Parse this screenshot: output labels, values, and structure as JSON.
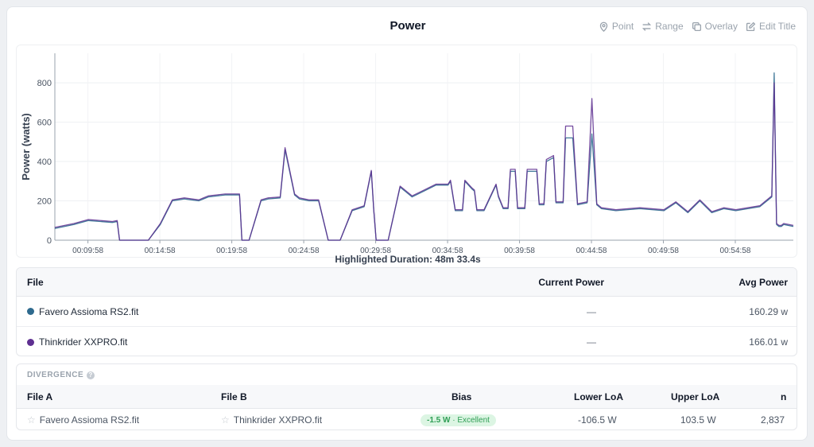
{
  "title": "Power",
  "toolbar": [
    {
      "label": "Point",
      "icon": "map-pin-icon"
    },
    {
      "label": "Range",
      "icon": "arrows-horizontal-icon"
    },
    {
      "label": "Overlay",
      "icon": "copy-icon"
    },
    {
      "label": "Edit Title",
      "icon": "edit-icon"
    }
  ],
  "chart_data": {
    "type": "line",
    "ylabel": "Power (watts)",
    "xlabel": "",
    "ylim": [
      0,
      950
    ],
    "yticks": [
      0,
      200,
      400,
      600,
      800
    ],
    "xticks": [
      "00:09:58",
      "00:14:58",
      "00:19:58",
      "00:24:58",
      "00:29:58",
      "00:34:58",
      "00:39:58",
      "00:44:58",
      "00:49:58",
      "00:54:58"
    ],
    "xlim_seconds": [
      460,
      3540
    ],
    "grid": true,
    "series": [
      {
        "name": "Favero Assioma RS2.fit",
        "color": "#2e6a8e",
        "x": [
          460,
          540,
          600,
          700,
          720,
          730,
          760,
          850,
          900,
          950,
          1000,
          1060,
          1100,
          1170,
          1230,
          1240,
          1250,
          1270,
          1320,
          1350,
          1400,
          1420,
          1460,
          1480,
          1520,
          1560,
          1600,
          1620,
          1650,
          1700,
          1750,
          1780,
          1790,
          1800,
          1820,
          1850,
          1900,
          1950,
          2000,
          2050,
          2100,
          2110,
          2130,
          2160,
          2170,
          2200,
          2210,
          2220,
          2250,
          2300,
          2310,
          2330,
          2350,
          2360,
          2380,
          2390,
          2420,
          2430,
          2470,
          2480,
          2500,
          2510,
          2540,
          2550,
          2580,
          2590,
          2620,
          2640,
          2680,
          2700,
          2720,
          2740,
          2800,
          2900,
          3000,
          3050,
          3100,
          3150,
          3200,
          3250,
          3300,
          3350,
          3400,
          3450,
          3460,
          3470,
          3480,
          3490,
          3500,
          3540
        ],
        "y": [
          60,
          80,
          100,
          90,
          95,
          0,
          0,
          0,
          80,
          200,
          210,
          200,
          220,
          230,
          230,
          0,
          0,
          0,
          200,
          210,
          215,
          460,
          230,
          210,
          200,
          200,
          0,
          0,
          0,
          150,
          170,
          350,
          150,
          0,
          0,
          0,
          270,
          220,
          250,
          280,
          280,
          300,
          150,
          150,
          300,
          260,
          250,
          150,
          150,
          280,
          220,
          160,
          160,
          350,
          350,
          160,
          160,
          350,
          350,
          180,
          180,
          400,
          420,
          190,
          190,
          520,
          520,
          180,
          190,
          540,
          180,
          160,
          150,
          160,
          150,
          190,
          140,
          200,
          140,
          160,
          150,
          160,
          170,
          220,
          850,
          80,
          70,
          70,
          80,
          70
        ]
      },
      {
        "name": "Thinkrider XXPRO.fit",
        "color": "#5e2f91",
        "x": [
          460,
          540,
          600,
          700,
          720,
          730,
          760,
          850,
          900,
          950,
          1000,
          1060,
          1100,
          1170,
          1230,
          1240,
          1250,
          1270,
          1320,
          1350,
          1400,
          1420,
          1460,
          1480,
          1520,
          1560,
          1600,
          1620,
          1650,
          1700,
          1750,
          1780,
          1790,
          1800,
          1820,
          1850,
          1900,
          1950,
          2000,
          2050,
          2100,
          2110,
          2130,
          2160,
          2170,
          2200,
          2210,
          2220,
          2250,
          2300,
          2310,
          2330,
          2350,
          2360,
          2380,
          2390,
          2420,
          2430,
          2470,
          2480,
          2500,
          2510,
          2540,
          2550,
          2580,
          2590,
          2620,
          2640,
          2680,
          2700,
          2720,
          2740,
          2800,
          2900,
          3000,
          3050,
          3100,
          3150,
          3200,
          3250,
          3300,
          3350,
          3400,
          3450,
          3460,
          3470,
          3480,
          3490,
          3500,
          3540
        ],
        "y": [
          65,
          85,
          105,
          95,
          100,
          0,
          0,
          0,
          85,
          205,
          215,
          205,
          225,
          235,
          235,
          0,
          0,
          0,
          205,
          215,
          220,
          470,
          235,
          215,
          205,
          205,
          0,
          0,
          0,
          155,
          175,
          355,
          155,
          0,
          0,
          0,
          275,
          225,
          255,
          285,
          285,
          305,
          155,
          155,
          305,
          265,
          255,
          155,
          155,
          285,
          225,
          165,
          165,
          360,
          360,
          165,
          165,
          360,
          360,
          185,
          185,
          410,
          430,
          195,
          195,
          580,
          580,
          185,
          195,
          720,
          185,
          165,
          155,
          165,
          155,
          195,
          145,
          205,
          145,
          165,
          155,
          165,
          175,
          225,
          800,
          85,
          75,
          75,
          85,
          75
        ]
      }
    ]
  },
  "highlighted": "Highlighted Duration: 48m 33.4s",
  "files_table": {
    "headers": {
      "file": "File",
      "current": "Current Power",
      "avg": "Avg Power"
    },
    "rows": [
      {
        "name": "Favero Assioma RS2.fit",
        "color": "#2e6a8e",
        "current": "—",
        "avg": "160.29 w"
      },
      {
        "name": "Thinkrider XXPRO.fit",
        "color": "#5e2f91",
        "current": "—",
        "avg": "166.01 w"
      }
    ]
  },
  "divergence": {
    "title": "DIVERGENCE",
    "headers": {
      "file_a": "File A",
      "file_b": "File B",
      "bias": "Bias",
      "lower": "Lower LoA",
      "upper": "Upper LoA",
      "n": "n"
    },
    "row": {
      "file_a": "Favero Assioma RS2.fit",
      "file_b": "Thinkrider XXPRO.fit",
      "bias_value": "-1.5 W",
      "bias_label": " · Excellent",
      "lower": "-106.5 W",
      "upper": "103.5 W",
      "n": "2,837"
    }
  }
}
